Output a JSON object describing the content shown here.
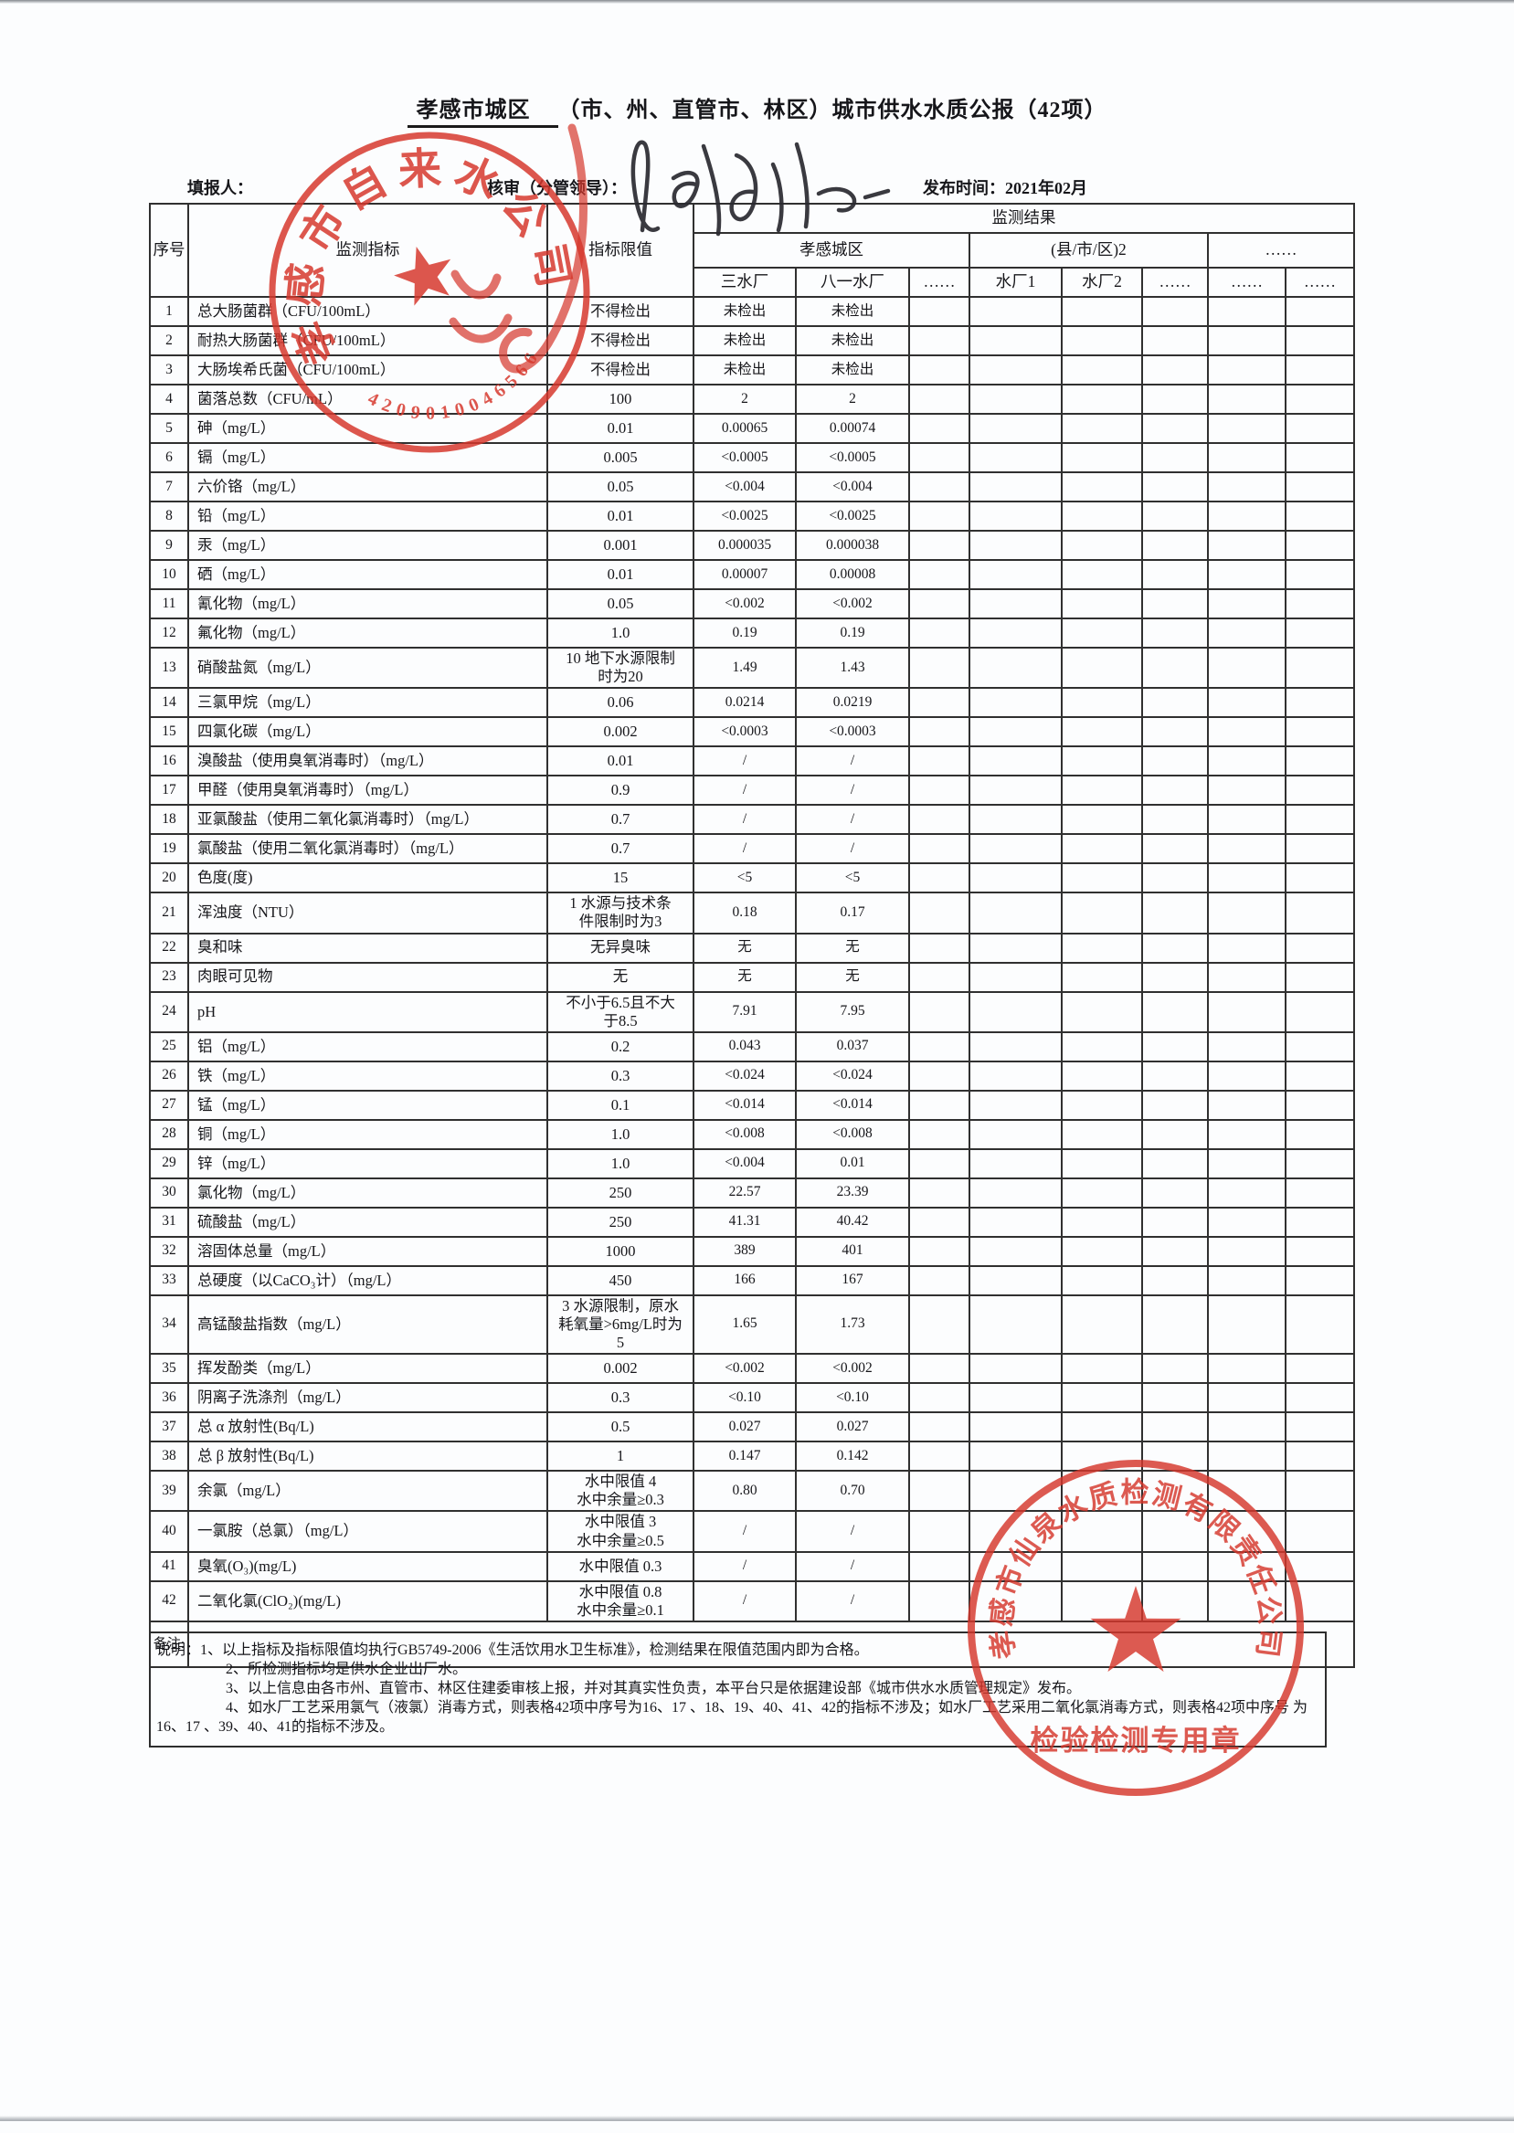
{
  "page": {
    "title_city": "孝感市城区",
    "title_rest": "（市、州、直管市、林区）城市供水水质公报（42项）",
    "filler_label": "填报人：",
    "reviewer_label": "核审（分管领导）：",
    "publish_label": "发布时间：",
    "publish_value": "2021年02月"
  },
  "table": {
    "col_seq": "序号",
    "col_indicator": "监测指标",
    "col_limit": "指标限值",
    "result_title": "监测结果",
    "groups": [
      {
        "label": "孝感城区",
        "span": 3
      },
      {
        "label": "(县/市/区)2",
        "span": 3
      },
      {
        "label": "……",
        "span": 2
      }
    ],
    "plants": [
      "三水厂",
      "八一水厂",
      "……",
      "水厂1",
      "水厂2",
      "……",
      "……",
      "……"
    ],
    "empty_cols": 6,
    "remark_label": "备注:",
    "rows": [
      {
        "no": "1",
        "indicator": "总大肠菌群（CFU/100mL）",
        "limit": "不得检出",
        "values": [
          "未检出",
          "未检出"
        ]
      },
      {
        "no": "2",
        "indicator": "耐热大肠菌群（CFU/100mL）",
        "limit": "不得检出",
        "values": [
          "未检出",
          "未检出"
        ]
      },
      {
        "no": "3",
        "indicator": "大肠埃希氏菌（CFU/100mL）",
        "limit": "不得检出",
        "values": [
          "未检出",
          "未检出"
        ]
      },
      {
        "no": "4",
        "indicator": "菌落总数（CFU/mL）",
        "limit": "100",
        "values": [
          "2",
          "2"
        ]
      },
      {
        "no": "5",
        "indicator": "砷（mg/L）",
        "limit": "0.01",
        "values": [
          "0.00065",
          "0.00074"
        ]
      },
      {
        "no": "6",
        "indicator": "镉（mg/L）",
        "limit": "0.005",
        "values": [
          "<0.0005",
          "<0.0005"
        ]
      },
      {
        "no": "7",
        "indicator": "六价铬（mg/L）",
        "limit": "0.05",
        "values": [
          "<0.004",
          "<0.004"
        ]
      },
      {
        "no": "8",
        "indicator": "铅（mg/L）",
        "limit": "0.01",
        "values": [
          "<0.0025",
          "<0.0025"
        ]
      },
      {
        "no": "9",
        "indicator": "汞（mg/L）",
        "limit": "0.001",
        "values": [
          "0.000035",
          "0.000038"
        ]
      },
      {
        "no": "10",
        "indicator": "硒（mg/L）",
        "limit": "0.01",
        "values": [
          "0.00007",
          "0.00008"
        ]
      },
      {
        "no": "11",
        "indicator": "氰化物（mg/L）",
        "limit": "0.05",
        "values": [
          "<0.002",
          "<0.002"
        ]
      },
      {
        "no": "12",
        "indicator": "氟化物（mg/L）",
        "limit": "1.0",
        "values": [
          "0.19",
          "0.19"
        ]
      },
      {
        "no": "13",
        "indicator": "硝酸盐氮（mg/L）",
        "limit": "10 地下水源限制\n时为20",
        "values": [
          "1.49",
          "1.43"
        ]
      },
      {
        "no": "14",
        "indicator": "三氯甲烷（mg/L）",
        "limit": "0.06",
        "values": [
          "0.0214",
          "0.0219"
        ]
      },
      {
        "no": "15",
        "indicator": "四氯化碳（mg/L）",
        "limit": "0.002",
        "values": [
          "<0.0003",
          "<0.0003"
        ]
      },
      {
        "no": "16",
        "indicator": "溴酸盐（使用臭氧消毒时）（mg/L）",
        "limit": "0.01",
        "values": [
          "/",
          "/"
        ]
      },
      {
        "no": "17",
        "indicator": "甲醛（使用臭氧消毒时）（mg/L）",
        "limit": "0.9",
        "values": [
          "/",
          "/"
        ]
      },
      {
        "no": "18",
        "indicator": "亚氯酸盐（使用二氧化氯消毒时）（mg/L）",
        "limit": "0.7",
        "values": [
          "/",
          "/"
        ]
      },
      {
        "no": "19",
        "indicator": "氯酸盐（使用二氧化氯消毒时）（mg/L）",
        "limit": "0.7",
        "values": [
          "/",
          "/"
        ]
      },
      {
        "no": "20",
        "indicator": "色度(度)",
        "limit": "15",
        "values": [
          "<5",
          "<5"
        ]
      },
      {
        "no": "21",
        "indicator": "浑浊度（NTU）",
        "limit": "1  水源与技术条\n件限制时为3",
        "values": [
          "0.18",
          "0.17"
        ]
      },
      {
        "no": "22",
        "indicator": "臭和味",
        "limit": "无异臭味",
        "values": [
          "无",
          "无"
        ]
      },
      {
        "no": "23",
        "indicator": "肉眼可见物",
        "limit": "无",
        "values": [
          "无",
          "无"
        ]
      },
      {
        "no": "24",
        "indicator": "pH",
        "limit": "不小于6.5且不大\n于8.5",
        "values": [
          "7.91",
          "7.95"
        ]
      },
      {
        "no": "25",
        "indicator": "铝（mg/L）",
        "limit": "0.2",
        "values": [
          "0.043",
          "0.037"
        ]
      },
      {
        "no": "26",
        "indicator": "铁（mg/L）",
        "limit": "0.3",
        "values": [
          "<0.024",
          "<0.024"
        ]
      },
      {
        "no": "27",
        "indicator": "锰（mg/L）",
        "limit": "0.1",
        "values": [
          "<0.014",
          "<0.014"
        ]
      },
      {
        "no": "28",
        "indicator": "铜（mg/L）",
        "limit": "1.0",
        "values": [
          "<0.008",
          "<0.008"
        ]
      },
      {
        "no": "29",
        "indicator": "锌（mg/L）",
        "limit": "1.0",
        "values": [
          "<0.004",
          "0.01"
        ]
      },
      {
        "no": "30",
        "indicator": "氯化物（mg/L）",
        "limit": "250",
        "values": [
          "22.57",
          "23.39"
        ]
      },
      {
        "no": "31",
        "indicator": "硫酸盐（mg/L）",
        "limit": "250",
        "values": [
          "41.31",
          "40.42"
        ]
      },
      {
        "no": "32",
        "indicator": "溶固体总量（mg/L）",
        "limit": "1000",
        "values": [
          "389",
          "401"
        ]
      },
      {
        "no": "33",
        "indicator": "总硬度（以CaCO₃计）（mg/L）",
        "limit": "450",
        "values": [
          "166",
          "167"
        ]
      },
      {
        "no": "34",
        "indicator": "高锰酸盐指数（mg/L）",
        "limit": "3 水源限制，原水\n耗氧量>6mg/L时为\n5",
        "values": [
          "1.65",
          "1.73"
        ]
      },
      {
        "no": "35",
        "indicator": "挥发酚类（mg/L）",
        "limit": "0.002",
        "values": [
          "<0.002",
          "<0.002"
        ]
      },
      {
        "no": "36",
        "indicator": "阴离子洗涤剂（mg/L）",
        "limit": "0.3",
        "values": [
          "<0.10",
          "<0.10"
        ]
      },
      {
        "no": "37",
        "indicator": "总 α 放射性(Bq/L)",
        "limit": "0.5",
        "values": [
          "0.027",
          "0.027"
        ]
      },
      {
        "no": "38",
        "indicator": "总 β 放射性(Bq/L)",
        "limit": "1",
        "values": [
          "0.147",
          "0.142"
        ]
      },
      {
        "no": "39",
        "indicator": "余氯（mg/L）",
        "limit": "水中限值 4\n水中余量≥0.3",
        "values": [
          "0.80",
          "0.70"
        ]
      },
      {
        "no": "40",
        "indicator": "一氯胺（总氯）（mg/L）",
        "limit": "水中限值 3\n水中余量≥0.5",
        "values": [
          "/",
          "/"
        ]
      },
      {
        "no": "41",
        "indicator": "臭氧(O₃)(mg/L)",
        "limit": "水中限值 0.3",
        "values": [
          "/",
          "/"
        ]
      },
      {
        "no": "42",
        "indicator": "二氧化氯(ClO₂)(mg/L)",
        "limit": "水中限值 0.8\n水中余量≥0.1",
        "values": [
          "/",
          "/"
        ]
      }
    ]
  },
  "notes": {
    "label": "说明：",
    "lines": [
      "1、以上指标及指标限值均执行GB5749-2006《生活饮用水卫生标准》，检测结果在限值范围内即为合格。",
      "2、所检测指标均是供水企业出厂水。",
      "3、以上信息由各市州、直管市、林区住建委审核上报，并对其真实性负责，本平台只是依据建设部《城市供水水质管理规定》发布。",
      "4、如水厂工艺采用氯气（液氯）消毒方式，则表格42项中序号为16、17 、18、19、40、41、42的指标不涉及；如水厂工艺采用二氧化氯消毒方式，则表格42项中序号 为16、17 、39、40、41的指标不涉及。"
    ]
  },
  "stamps": {
    "top": {
      "company": "孝感市自来水公司",
      "code": "4209010046566"
    },
    "bottom": {
      "company": "孝感市仙泉水质检测有限责任公司",
      "seal_text": "检验检测专用章"
    }
  },
  "colors": {
    "stamp_red": "#d6372c",
    "grid_line": "#303030",
    "text": "#16161a"
  }
}
